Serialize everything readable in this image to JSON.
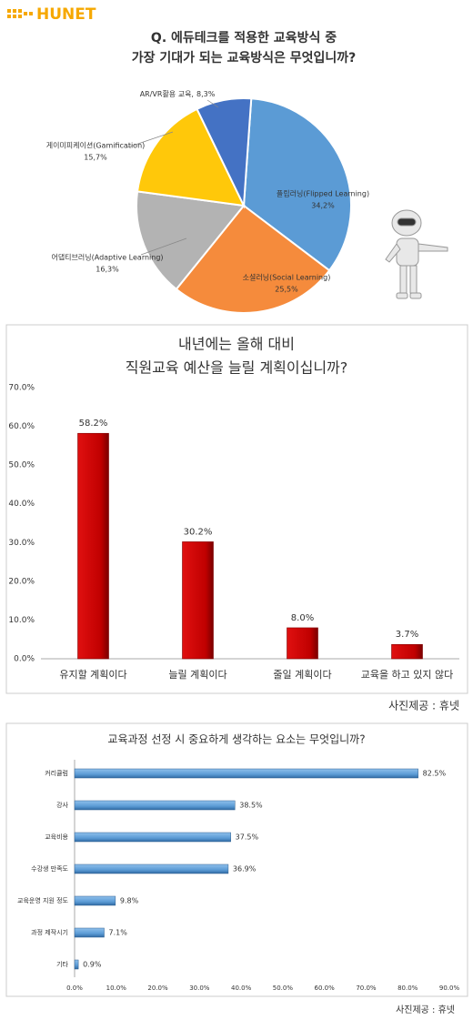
{
  "header": {
    "logo": "HUNET"
  },
  "chart_data": [
    {
      "type": "pie",
      "title": [
        "Q. 에듀테크를 적용한 교육방식 중",
        "가장 기대가 되는 교육방식은 무엇입니까?"
      ],
      "categories": [
        "플립러닝(Flipped Learning)",
        "소셜러닝(Social Learning)",
        "어댑티브러닝(Adaptive Learning)",
        "게이미피케이션(Gamification)",
        "AR/VR활용 교육,"
      ],
      "values": [
        34.2,
        25.5,
        16.3,
        15.7,
        8.3
      ],
      "value_labels": [
        "34,2%",
        "25,5%",
        "16,3%",
        "15,7%",
        "8,3%"
      ],
      "colors": [
        "#5b9bd5",
        "#f58b3c",
        "#b3b3b3",
        "#ffc80a",
        "#4472c4"
      ]
    },
    {
      "type": "bar",
      "title": [
        "내년에는 올해 대비",
        "직원교육 예산을 늘릴 계획이십니까?"
      ],
      "categories": [
        "유지할 계획이다",
        "늘릴 계획이다",
        "줄일 계획이다",
        "교육을 하고 있지 않다"
      ],
      "values": [
        58.2,
        30.2,
        8.0,
        3.7
      ],
      "value_labels": [
        "58.2%",
        "30.2%",
        "8.0%",
        "3.7%"
      ],
      "color": "#c00000",
      "ylim": [
        0,
        70
      ],
      "yticks": [
        {
          "value": 0,
          "label": "0.0%"
        },
        {
          "value": 10,
          "label": "10.0%"
        },
        {
          "value": 20,
          "label": "20.0%"
        },
        {
          "value": 30,
          "label": "30.0%"
        },
        {
          "value": 40,
          "label": "40.0%"
        },
        {
          "value": 50,
          "label": "50.0%"
        },
        {
          "value": 60,
          "label": "60.0%"
        },
        {
          "value": 70,
          "label": "70.0%"
        }
      ]
    },
    {
      "type": "hbar",
      "title": "교육과정 선정 시 중요하게 생각하는 요소는 무엇입니까?",
      "categories": [
        "커리큘럼",
        "강사",
        "교육비용",
        "수강생 만족도",
        "교육운영 지원 정도",
        "과정 제작시기",
        "기타"
      ],
      "values": [
        82.5,
        38.5,
        37.5,
        36.9,
        9.8,
        7.1,
        0.9
      ],
      "value_labels": [
        "82.5%",
        "38.5%",
        "37.5%",
        "36.9%",
        "9.8%",
        "7.1%",
        "0.9%"
      ],
      "color": "#5b9bd5",
      "xlim": [
        0,
        90
      ],
      "xticks": [
        {
          "value": 0,
          "label": "0.0%"
        },
        {
          "value": 10,
          "label": "10.0%"
        },
        {
          "value": 20,
          "label": "20.0%"
        },
        {
          "value": 30,
          "label": "30.0%"
        },
        {
          "value": 40,
          "label": "40.0%"
        },
        {
          "value": 50,
          "label": "50.0%"
        },
        {
          "value": 60,
          "label": "60.0%"
        },
        {
          "value": 70,
          "label": "70.0%"
        },
        {
          "value": 80,
          "label": "80.0%"
        },
        {
          "value": 90,
          "label": "90.0%"
        }
      ]
    }
  ],
  "credits": [
    "사진제공 : 휴넷",
    "사진제공 : 휴넷"
  ]
}
